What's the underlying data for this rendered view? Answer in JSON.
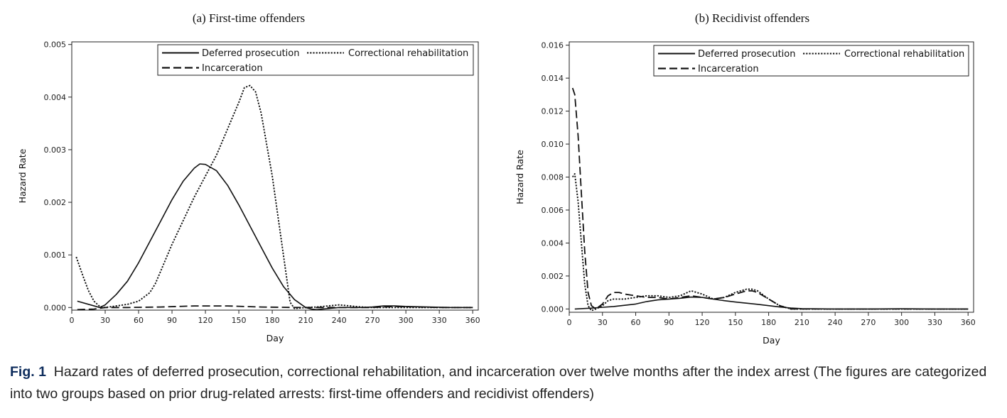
{
  "chart_data": [
    {
      "type": "line",
      "title": "(a) First-time offenders",
      "xlabel": "Day",
      "ylabel": "Hazard Rate",
      "xlim": [
        0,
        365
      ],
      "ylim": [
        -5e-05,
        0.00505
      ],
      "xticks": [
        0,
        30,
        60,
        90,
        120,
        150,
        180,
        210,
        240,
        270,
        300,
        330,
        360
      ],
      "yticks": [
        0.0,
        0.001,
        0.002,
        0.003,
        0.004,
        0.005
      ],
      "ytick_labels": [
        "0.000",
        "0.001",
        "0.002",
        "0.003",
        "0.004",
        "0.005"
      ],
      "legend_position": "top-right",
      "series": [
        {
          "name": "Deferred prosecution",
          "style": "solid",
          "x": [
            5,
            15,
            25,
            30,
            40,
            50,
            60,
            70,
            80,
            90,
            100,
            110,
            115,
            120,
            130,
            140,
            150,
            160,
            170,
            180,
            190,
            200,
            210,
            215,
            220,
            230,
            240,
            250,
            260,
            270,
            280,
            290,
            300,
            320,
            340,
            360
          ],
          "y": [
            0.00012,
            6e-05,
            0.0,
            5e-05,
            0.00025,
            0.0005,
            0.00085,
            0.00125,
            0.00165,
            0.00205,
            0.0024,
            0.00265,
            0.00273,
            0.00272,
            0.0026,
            0.00232,
            0.00195,
            0.00155,
            0.00115,
            0.00075,
            0.0004,
            0.00015,
            0.0,
            -3e-05,
            -4e-05,
            -2e-05,
            0.0,
            0.0,
            0.0,
            1e-05,
            3e-05,
            3e-05,
            2e-05,
            1e-05,
            0.0,
            0.0
          ]
        },
        {
          "name": "Correctional rehabilitation",
          "style": "dotted",
          "x": [
            4,
            10,
            15,
            20,
            25,
            30,
            40,
            50,
            60,
            70,
            75,
            80,
            90,
            100,
            110,
            120,
            130,
            140,
            150,
            155,
            160,
            165,
            170,
            180,
            190,
            196,
            200,
            210,
            220,
            230,
            240,
            250,
            260,
            270,
            280,
            290,
            300,
            320,
            340,
            360
          ],
          "y": [
            0.00096,
            0.0006,
            0.00032,
            0.00012,
            2e-05,
            0.0,
            3e-05,
            6e-05,
            0.00012,
            0.00028,
            0.00045,
            0.0007,
            0.0012,
            0.00165,
            0.0021,
            0.0025,
            0.0029,
            0.0034,
            0.0039,
            0.00418,
            0.00422,
            0.0041,
            0.0037,
            0.0025,
            0.001,
            0.0001,
            -2e-05,
            0.0,
            1e-05,
            3e-05,
            5e-05,
            3e-05,
            1e-05,
            0.0,
            0.0,
            0.0,
            0.0,
            0.0,
            0.0,
            0.0
          ]
        },
        {
          "name": "Incarceration",
          "style": "dashed",
          "x": [
            5,
            20,
            30,
            50,
            80,
            110,
            140,
            170,
            200,
            220,
            230,
            250,
            270,
            290,
            310,
            330,
            360
          ],
          "y": [
            -4e-05,
            -3e-05,
            0.0,
            0.0,
            1e-05,
            3e-05,
            3e-05,
            1e-05,
            0.0,
            0.0,
            0.0,
            0.0,
            0.0,
            2e-05,
            1e-05,
            0.0,
            0.0
          ]
        }
      ]
    },
    {
      "type": "line",
      "title": "(b) Recidivist offenders",
      "xlabel": "Day",
      "ylabel": "Hazard Rate",
      "xlim": [
        0,
        365
      ],
      "ylim": [
        -0.0002,
        0.0162
      ],
      "xticks": [
        0,
        30,
        60,
        90,
        120,
        150,
        180,
        210,
        240,
        270,
        300,
        330,
        360
      ],
      "yticks": [
        0.0,
        0.002,
        0.004,
        0.006,
        0.008,
        0.01,
        0.012,
        0.014,
        0.016
      ],
      "ytick_labels": [
        "0.000",
        "0.002",
        "0.004",
        "0.006",
        "0.008",
        "0.010",
        "0.012",
        "0.014",
        "0.016"
      ],
      "legend_position": "top-right",
      "series": [
        {
          "name": "Deferred prosecution",
          "style": "solid",
          "x": [
            5,
            20,
            30,
            40,
            50,
            60,
            70,
            80,
            90,
            100,
            110,
            120,
            130,
            140,
            150,
            160,
            170,
            180,
            190,
            200,
            210,
            240,
            270,
            300,
            330,
            360
          ],
          "y": [
            0.0,
            5e-05,
            0.0001,
            0.00015,
            0.00022,
            0.0003,
            0.00045,
            0.00055,
            0.0006,
            0.00065,
            0.00072,
            0.0007,
            0.0006,
            0.0005,
            0.00042,
            0.00035,
            0.00028,
            0.0002,
            0.00012,
            6e-05,
            2e-05,
            0.0,
            0.0,
            1e-05,
            0.0,
            0.0
          ]
        },
        {
          "name": "Correctional rehabilitation",
          "style": "dotted",
          "x": [
            3,
            5,
            8,
            11,
            14,
            17,
            20,
            24,
            30,
            35,
            40,
            50,
            60,
            70,
            80,
            90,
            100,
            110,
            120,
            130,
            140,
            150,
            160,
            165,
            170,
            180,
            190,
            200,
            210,
            240,
            270,
            300,
            330,
            360
          ],
          "y": [
            0.008,
            0.0082,
            0.0065,
            0.004,
            0.0015,
            0.0002,
            -0.0001,
            0.0,
            0.0002,
            0.0005,
            0.0006,
            0.0006,
            0.0007,
            0.0008,
            0.0008,
            0.0007,
            0.0008,
            0.0011,
            0.0009,
            0.0006,
            0.0007,
            0.001,
            0.0012,
            0.0012,
            0.0011,
            0.0006,
            0.0002,
            0.0,
            0.0,
            0.0,
            0.0,
            0.0,
            0.0,
            0.0
          ]
        },
        {
          "name": "Incarceration",
          "style": "dashed",
          "x": [
            3,
            5,
            8,
            11,
            14,
            17,
            20,
            24,
            30,
            35,
            40,
            45,
            50,
            60,
            70,
            80,
            90,
            100,
            110,
            120,
            130,
            140,
            150,
            160,
            165,
            170,
            180,
            190,
            200,
            210,
            240,
            270,
            300,
            330,
            360
          ],
          "y": [
            0.0134,
            0.013,
            0.0105,
            0.007,
            0.0035,
            0.001,
            0.0002,
            0.0,
            0.0003,
            0.0008,
            0.001,
            0.001,
            0.0009,
            0.0008,
            0.0007,
            0.0007,
            0.0006,
            0.0007,
            0.0008,
            0.0007,
            0.0006,
            0.0007,
            0.0009,
            0.0011,
            0.0011,
            0.001,
            0.0006,
            0.0002,
            0.0,
            0.0,
            0.0,
            0.0,
            0.0,
            0.0,
            0.0
          ]
        }
      ]
    }
  ],
  "caption": {
    "label": "Fig. 1",
    "text": "Hazard rates of deferred prosecution, correctional rehabilitation, and incarceration over twelve months after the index arrest (The figures are categorized into two groups based on prior drug-related arrests: first-time offenders and recidivist offenders)"
  }
}
